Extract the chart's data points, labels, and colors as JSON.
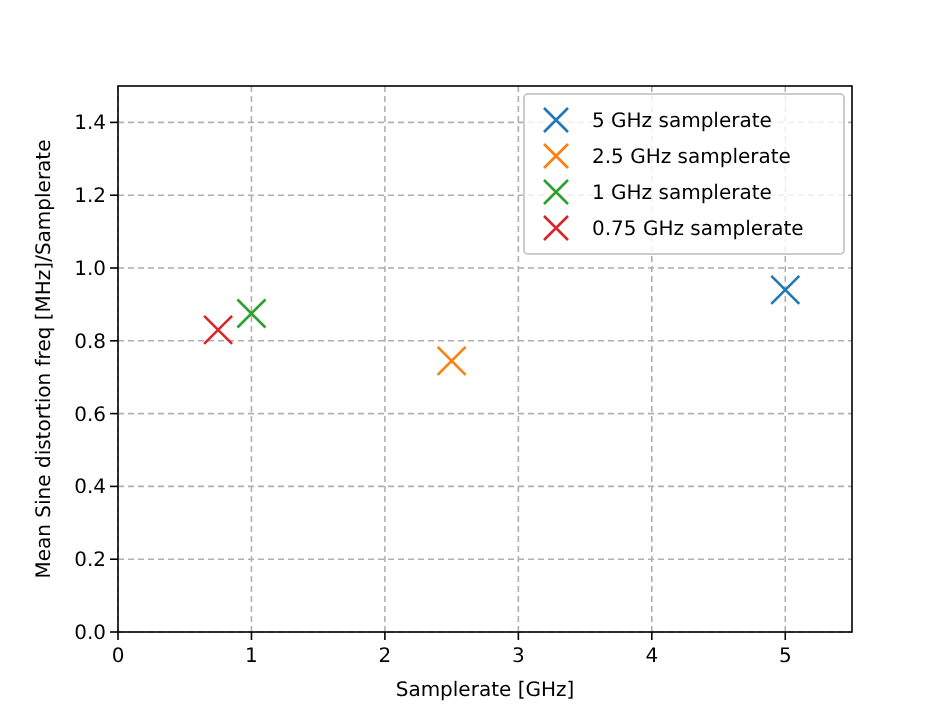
{
  "chart_data": {
    "type": "scatter",
    "xlabel": "Samplerate [GHz]",
    "ylabel": "Mean Sine distortion freq [MHz]/Samplerate",
    "xlim": [
      0,
      5.5
    ],
    "xticks": [
      0,
      1,
      2,
      3,
      4,
      5
    ],
    "ylim": [
      0,
      1.5
    ],
    "yticks": [
      {
        "value": 0,
        "label": "0.0"
      },
      {
        "value": 0.2,
        "label": "0.2"
      },
      {
        "value": 0.4,
        "label": "0.4"
      },
      {
        "value": 0.6,
        "label": "0.6"
      },
      {
        "value": 0.8,
        "label": "0.8"
      },
      {
        "value": 1,
        "label": "1.0"
      },
      {
        "value": 1.2,
        "label": "1.2"
      },
      {
        "value": 1.4,
        "label": "1.4"
      }
    ],
    "grid": true,
    "legend": "top right",
    "marker": "cross",
    "series": [
      {
        "name": "5 GHz samplerate",
        "color": "#1f77b4",
        "x": [
          5
        ],
        "values": [
          0.94
        ]
      },
      {
        "name": "2.5 GHz samplerate",
        "color": "#ff7f0e",
        "x": [
          2.5
        ],
        "values": [
          0.745
        ]
      },
      {
        "name": "1 GHz samplerate",
        "color": "#2ca02c",
        "x": [
          1
        ],
        "values": [
          0.875
        ]
      },
      {
        "name": "0.75 GHz samplerate",
        "color": "#d62728",
        "x": [
          0.75
        ],
        "values": [
          0.83
        ]
      }
    ]
  }
}
